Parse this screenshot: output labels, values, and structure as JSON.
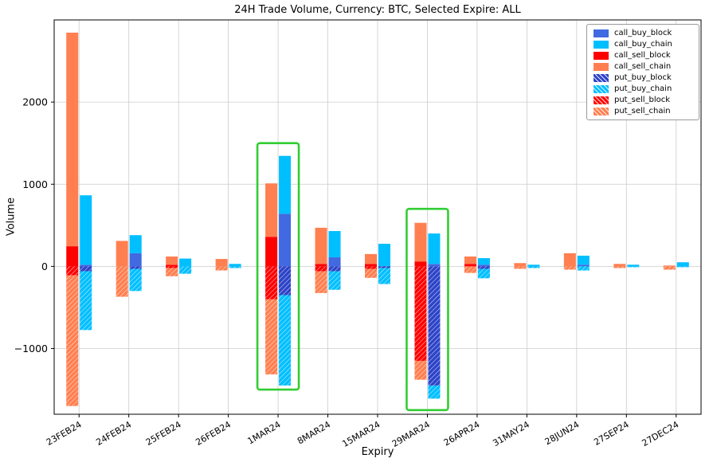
{
  "figure": {
    "background": "#ffffff",
    "axes_edge_color": "#000000",
    "grid_color": "#cccccc"
  },
  "chart_data": {
    "type": "bar",
    "title": "24H Trade Volume, Currency: BTC, Selected Expire: ALL",
    "xlabel": "Expiry",
    "ylabel": "Volume",
    "ylim": [
      -1800,
      3000
    ],
    "yticks": [
      -1000,
      0,
      1000,
      2000
    ],
    "grid": true,
    "legend_position": "upper right",
    "bar_layout": "two stacked bars per category: sell bar (left), buy bar (right); call_* segments stack upward from 0, put_* segments stack downward from 0 (values below are magnitudes)",
    "categories": [
      "23FEB24",
      "24FEB24",
      "25FEB24",
      "26FEB24",
      "1MAR24",
      "8MAR24",
      "15MAR24",
      "29MAR24",
      "26APR24",
      "31MAY24",
      "28JUN24",
      "27SEP24",
      "27DEC24"
    ],
    "series": [
      {
        "name": "call_buy_block",
        "color": "#4169e1",
        "hatch": false,
        "bar": "buy",
        "side": "positive",
        "values": [
          20,
          160,
          0,
          0,
          640,
          110,
          0,
          30,
          20,
          0,
          20,
          0,
          0
        ]
      },
      {
        "name": "call_buy_chain",
        "color": "#00bfff",
        "hatch": false,
        "bar": "buy",
        "side": "positive",
        "values": [
          845,
          220,
          95,
          30,
          705,
          320,
          275,
          370,
          80,
          20,
          110,
          20,
          50
        ]
      },
      {
        "name": "call_sell_block",
        "color": "#ff0000",
        "hatch": false,
        "bar": "sell",
        "side": "positive",
        "values": [
          245,
          0,
          20,
          0,
          360,
          30,
          30,
          60,
          30,
          0,
          0,
          0,
          0
        ]
      },
      {
        "name": "call_sell_chain",
        "color": "#ff7f50",
        "hatch": false,
        "bar": "sell",
        "side": "positive",
        "values": [
          2600,
          310,
          100,
          90,
          650,
          440,
          120,
          470,
          90,
          40,
          160,
          30,
          10
        ]
      },
      {
        "name": "put_buy_block",
        "color": "#2d43c8",
        "hatch": true,
        "bar": "buy",
        "side": "negative",
        "values": [
          60,
          30,
          0,
          0,
          350,
          60,
          20,
          1450,
          30,
          0,
          0,
          0,
          0
        ]
      },
      {
        "name": "put_buy_chain",
        "color": "#00bfff",
        "hatch": true,
        "bar": "buy",
        "side": "negative",
        "values": [
          715,
          270,
          90,
          20,
          1100,
          225,
          195,
          160,
          115,
          20,
          50,
          10,
          10
        ]
      },
      {
        "name": "put_sell_block",
        "color": "#ff0000",
        "hatch": true,
        "bar": "sell",
        "side": "negative",
        "values": [
          110,
          0,
          20,
          0,
          400,
          60,
          30,
          1150,
          0,
          0,
          0,
          0,
          0
        ]
      },
      {
        "name": "put_sell_chain",
        "color": "#ff7f50",
        "hatch": true,
        "bar": "sell",
        "side": "negative",
        "values": [
          1590,
          370,
          100,
          50,
          915,
          265,
          110,
          230,
          80,
          30,
          40,
          20,
          40
        ]
      }
    ],
    "highlights": [
      {
        "category": "1MAR24",
        "value_min": -1500,
        "value_max": 1500
      },
      {
        "category": "29MAR24",
        "value_min": -1750,
        "value_max": 700
      }
    ],
    "highlight_color": "#32cd32"
  }
}
